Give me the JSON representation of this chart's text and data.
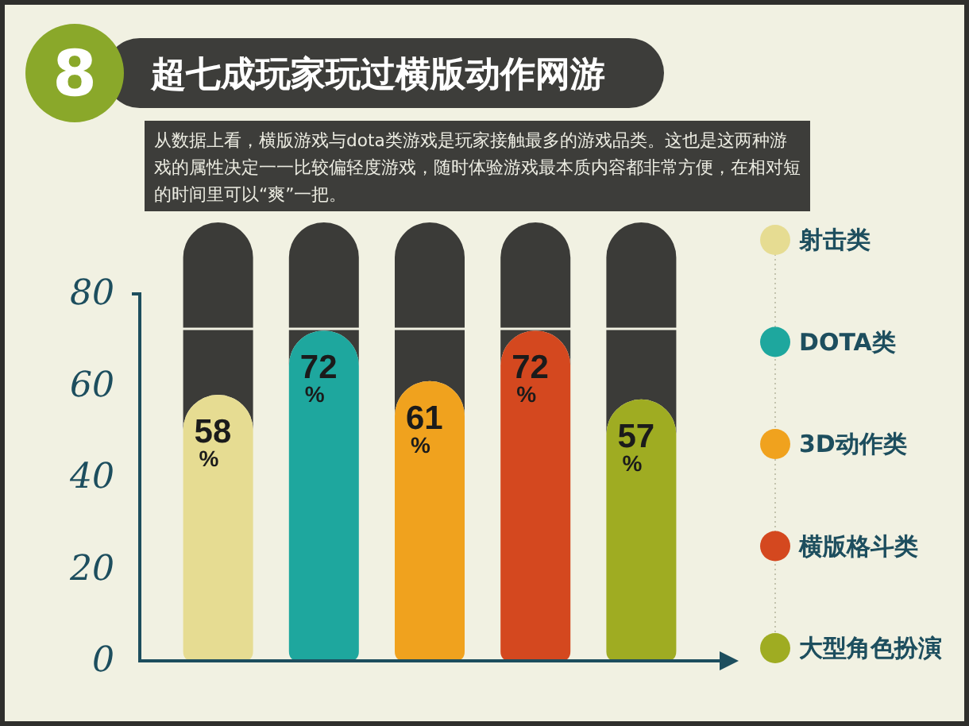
{
  "chart_data": {
    "type": "bar",
    "title": "超七成玩家玩过横版动作网游",
    "subtitle": "从数据上看，横版游戏与dota类游戏是玩家接触最多的游戏品类。这也是这两种游戏的属性决定一一比较偏轻度游戏，随时体验游戏最本质内容都非常方便，在相对短的时间里可以“爽”一把。",
    "annotations": [
      "8"
    ],
    "categories": [
      null,
      null,
      null,
      null,
      null
    ],
    "series": [
      {
        "name": "射击类",
        "color": "#e6dc92",
        "values": [
          58,
          null,
          null,
          null,
          null
        ],
        "value_labels": [
          "58\n%",
          null,
          null,
          null,
          null
        ]
      },
      {
        "name": "DOTA类",
        "color": "#1ea79e",
        "values": [
          null,
          72,
          null,
          null,
          null
        ],
        "value_labels": [
          null,
          "72\n%",
          null,
          null,
          null
        ]
      },
      {
        "name": "3D动作类",
        "color": "#f0a21e",
        "values": [
          null,
          null,
          61,
          null,
          null
        ],
        "value_labels": [
          null,
          null,
          "61\n%",
          null,
          null
        ]
      },
      {
        "name": "横版格斗类",
        "color": "#d4481f",
        "values": [
          null,
          null,
          null,
          72,
          null
        ],
        "value_labels": [
          null,
          null,
          null,
          "72\n%",
          null
        ]
      },
      {
        "name": "大型角色扮演",
        "color": "#9fac22",
        "values": [
          null,
          null,
          null,
          null,
          57
        ],
        "value_labels": [
          null,
          null,
          null,
          null,
          "57\n%"
        ]
      }
    ],
    "ylim": [
      0,
      80
    ],
    "yticks": [
      0,
      20,
      40,
      60,
      80
    ],
    "tick_labels": "y",
    "legend": "right"
  }
}
